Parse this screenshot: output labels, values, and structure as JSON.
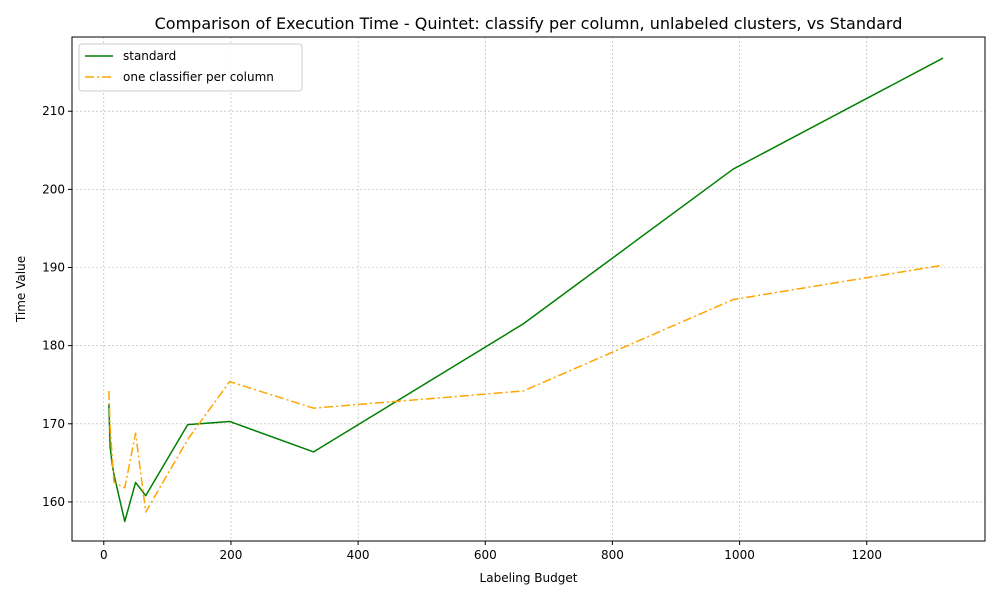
{
  "chart_data": {
    "type": "line",
    "title": "Comparison of Execution Time - Quintet: classify per column, unlabeled clusters, vs Standard",
    "xlabel": "Labeling Budget",
    "ylabel": "Time Value",
    "xlim": [
      -50,
      1386
    ],
    "ylim": [
      155,
      219.5
    ],
    "xticks": [
      0,
      200,
      400,
      600,
      800,
      1000,
      1200
    ],
    "yticks": [
      160,
      170,
      180,
      190,
      200,
      210
    ],
    "grid": true,
    "legend_position": "upper-left",
    "series": [
      {
        "name": "standard",
        "color": "#008000",
        "dash": "solid",
        "x": [
          8,
          10,
          13,
          16,
          33,
          50,
          66,
          132,
          198,
          330,
          660,
          990,
          1320
        ],
        "y": [
          172.5,
          167.0,
          165.0,
          163.5,
          157.5,
          162.5,
          160.8,
          169.9,
          170.3,
          166.4,
          182.8,
          202.6,
          216.8
        ]
      },
      {
        "name": "one classifier per column",
        "color": "#ffa500",
        "dash": "dashdot",
        "x": [
          8,
          10,
          13,
          16,
          33,
          50,
          66,
          132,
          198,
          330,
          660,
          990,
          1320
        ],
        "y": [
          174.2,
          169.5,
          166.0,
          162.5,
          161.8,
          168.8,
          158.7,
          168.0,
          175.4,
          172.0,
          174.2,
          185.9,
          190.3
        ]
      }
    ]
  }
}
